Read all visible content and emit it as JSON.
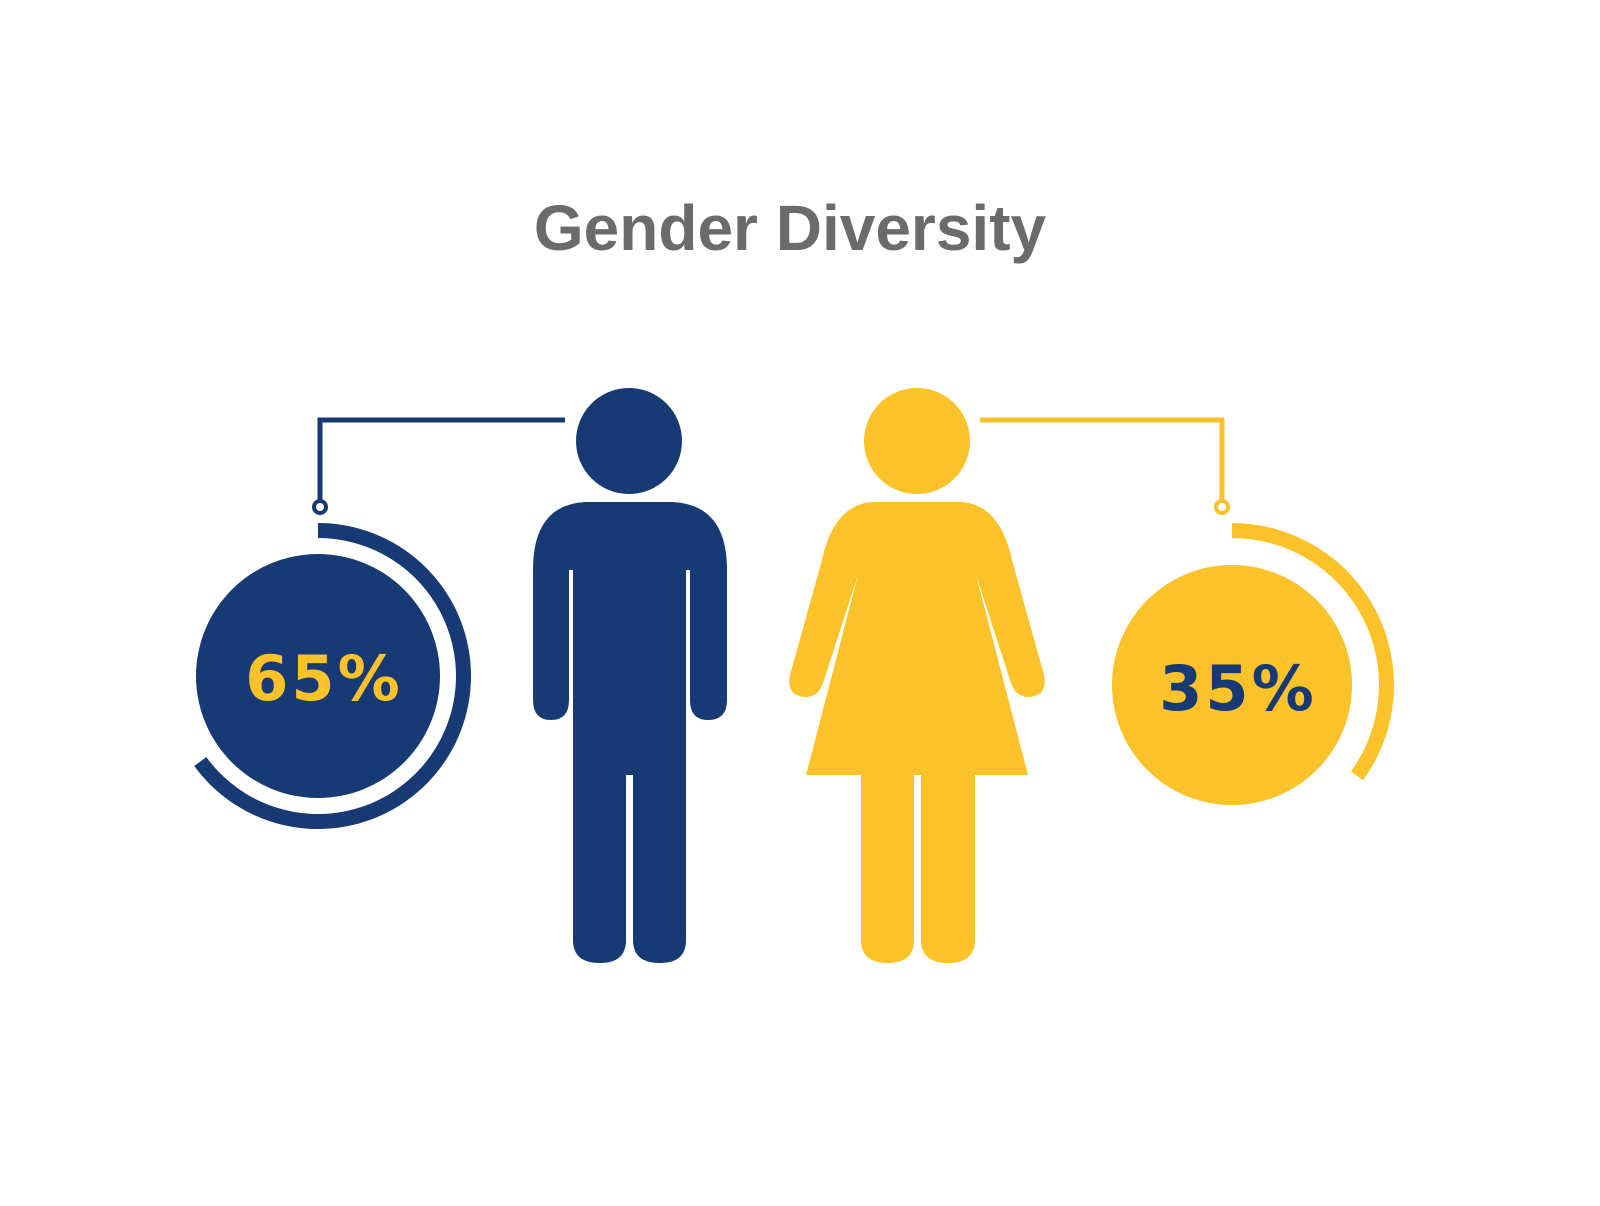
{
  "chart_data": {
    "type": "pie",
    "title": "Gender Diversity",
    "series": [
      {
        "value": 65,
        "label": "65%",
        "icon": "male-figure-icon",
        "color": "#173a75",
        "text_color": "#fcc22a"
      },
      {
        "value": 35,
        "label": "35%",
        "icon": "female-figure-icon",
        "color": "#fcc22a",
        "text_color": "#173a75"
      }
    ],
    "units": "percent"
  }
}
